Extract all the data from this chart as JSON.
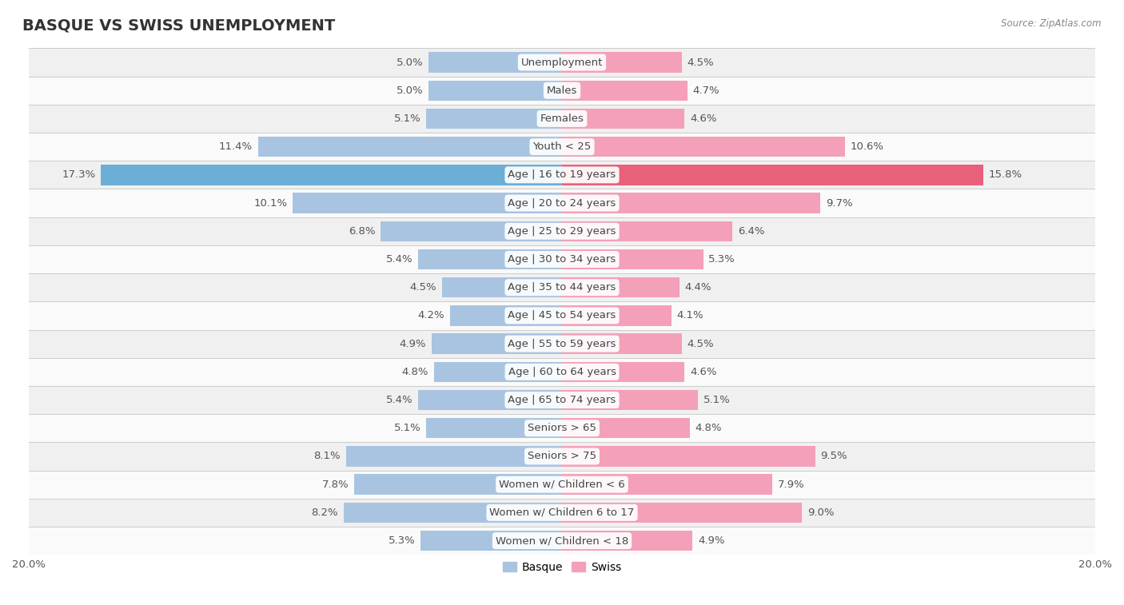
{
  "title": "BASQUE VS SWISS UNEMPLOYMENT",
  "source": "Source: ZipAtlas.com",
  "categories": [
    "Unemployment",
    "Males",
    "Females",
    "Youth < 25",
    "Age | 16 to 19 years",
    "Age | 20 to 24 years",
    "Age | 25 to 29 years",
    "Age | 30 to 34 years",
    "Age | 35 to 44 years",
    "Age | 45 to 54 years",
    "Age | 55 to 59 years",
    "Age | 60 to 64 years",
    "Age | 65 to 74 years",
    "Seniors > 65",
    "Seniors > 75",
    "Women w/ Children < 6",
    "Women w/ Children 6 to 17",
    "Women w/ Children < 18"
  ],
  "basque": [
    5.0,
    5.0,
    5.1,
    11.4,
    17.3,
    10.1,
    6.8,
    5.4,
    4.5,
    4.2,
    4.9,
    4.8,
    5.4,
    5.1,
    8.1,
    7.8,
    8.2,
    5.3
  ],
  "swiss": [
    4.5,
    4.7,
    4.6,
    10.6,
    15.8,
    9.7,
    6.4,
    5.3,
    4.4,
    4.1,
    4.5,
    4.6,
    5.1,
    4.8,
    9.5,
    7.9,
    9.0,
    4.9
  ],
  "basque_color": "#a8c4e0",
  "swiss_color": "#f4a0b8",
  "highlight_basque_color": "#6baed6",
  "highlight_swiss_color": "#e8607a",
  "highlight_row": 4,
  "x_max": 20.0,
  "bar_height": 0.72,
  "bg_color": "#ffffff",
  "row_even_color": "#f0f0f0",
  "row_odd_color": "#fafafa",
  "label_fontsize": 9.5,
  "title_fontsize": 14,
  "legend_fontsize": 10,
  "axis_label_fontsize": 9.5,
  "value_label_color": "#555555",
  "category_label_color": "#444444"
}
